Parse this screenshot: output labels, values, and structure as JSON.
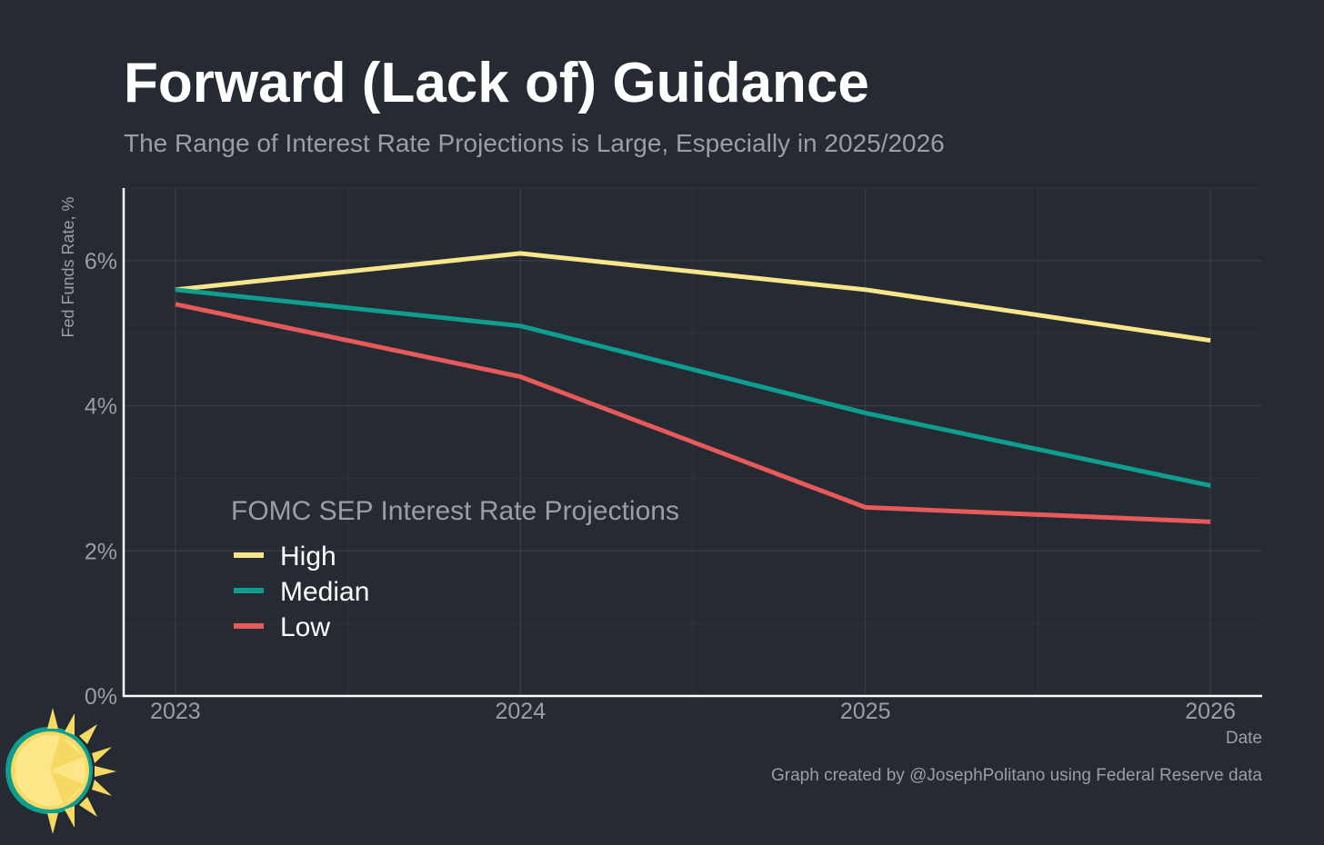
{
  "colors": {
    "background": "#252a33",
    "high": "#f9e58a",
    "median": "#0d9e8f",
    "low": "#e8595a"
  },
  "chart_data": {
    "type": "line",
    "title": "Forward (Lack of) Guidance",
    "subtitle": "The Range of Interest Rate Projections is Large, Especially in 2025/2026",
    "xlabel": "Date",
    "ylabel": "Fed Funds Rate, %",
    "x": [
      2023,
      2024,
      2025,
      2026
    ],
    "x_tick_labels": [
      "2023",
      "2024",
      "2025",
      "2026"
    ],
    "xlim": [
      2022.85,
      2026.15
    ],
    "ylim": [
      0,
      7
    ],
    "y_ticks": [
      0,
      2,
      4,
      6
    ],
    "y_tick_labels": [
      "0%",
      "2%",
      "4%",
      "6%"
    ],
    "grid": true,
    "legend": {
      "title": "FOMC SEP Interest Rate Projections",
      "placement": "inside-bottom-left"
    },
    "series": [
      {
        "name": "High",
        "color": "#f9e58a",
        "values": [
          5.6,
          6.1,
          5.6,
          4.9
        ]
      },
      {
        "name": "Median",
        "color": "#0d9e8f",
        "values": [
          5.6,
          5.1,
          3.9,
          2.9
        ]
      },
      {
        "name": "Low",
        "color": "#e8595a",
        "values": [
          5.4,
          4.4,
          2.6,
          2.4
        ]
      }
    ]
  },
  "caption": "Graph created by @JosephPolitano using Federal Reserve data",
  "logo": {
    "icon": "sun-logo-icon"
  }
}
